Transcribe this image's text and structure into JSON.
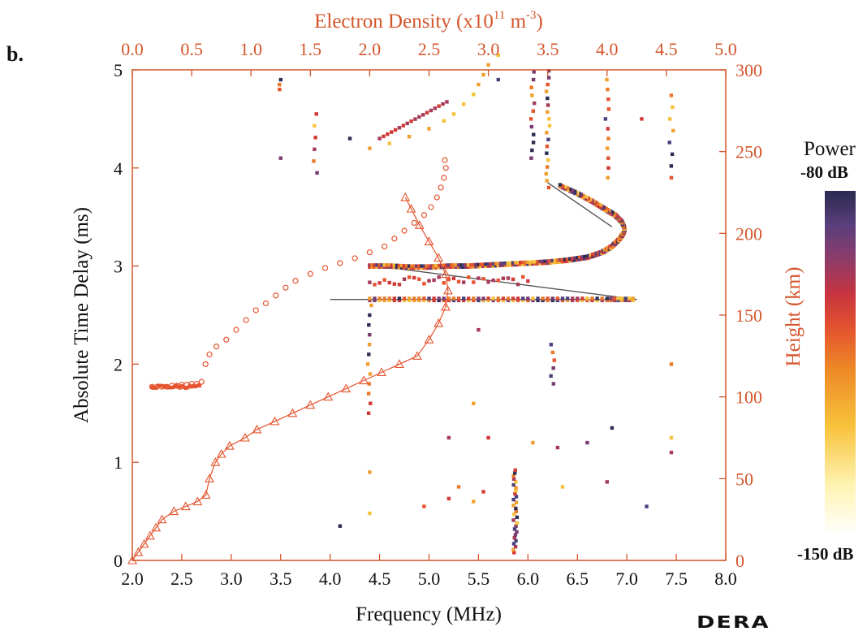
{
  "panel_label": "b.",
  "logo_text": "DERA",
  "chart_data": {
    "type": "scatter",
    "xlabel": "Frequency (MHz)",
    "ylabel": "Absolute Time Delay (ms)",
    "x2label_main": "Electron Density (x10",
    "x2label_sup1": "11",
    "x2label_unit": " m",
    "x2label_sup2": "-3",
    "x2label_close": ")",
    "y2label": "Height (km)",
    "xlim": [
      2.0,
      8.0
    ],
    "ylim": [
      0,
      5
    ],
    "x2lim": [
      0.0,
      5.0
    ],
    "y2lim": [
      0,
      300
    ],
    "x_ticks": [
      "2.0",
      "2.5",
      "3.0",
      "3.5",
      "4.0",
      "4.5",
      "5.0",
      "5.5",
      "6.0",
      "6.5",
      "7.0",
      "7.5",
      "8.0"
    ],
    "y_ticks": [
      "0",
      "1",
      "2",
      "3",
      "4",
      "5"
    ],
    "x2_ticks": [
      "0.0",
      "0.5",
      "1.0",
      "1.5",
      "2.0",
      "2.5",
      "3.0",
      "3.5",
      "4.0",
      "4.5",
      "5.0"
    ],
    "y2_ticks": [
      "0",
      "50",
      "100",
      "150",
      "200",
      "250",
      "300"
    ],
    "colorbar": {
      "title": "Power",
      "max_label": "-80 dB",
      "min_label": "-150 dB",
      "range_db": [
        -150,
        -80
      ]
    },
    "colors": {
      "axis": "#d4552b",
      "text": "#111111",
      "fit_line": "#555555"
    },
    "density_profile_triangles": [
      [
        0.0,
        0
      ],
      [
        0.05,
        5
      ],
      [
        0.1,
        10
      ],
      [
        0.15,
        15
      ],
      [
        0.2,
        20
      ],
      [
        0.25,
        25
      ],
      [
        0.35,
        30
      ],
      [
        0.45,
        33
      ],
      [
        0.55,
        36
      ],
      [
        0.62,
        40
      ],
      [
        0.65,
        50
      ],
      [
        0.7,
        60
      ],
      [
        0.75,
        65
      ],
      [
        0.82,
        70
      ],
      [
        0.95,
        75
      ],
      [
        1.05,
        80
      ],
      [
        1.2,
        85
      ],
      [
        1.35,
        90
      ],
      [
        1.5,
        95
      ],
      [
        1.65,
        100
      ],
      [
        1.8,
        105
      ],
      [
        1.95,
        110
      ],
      [
        2.1,
        115
      ],
      [
        2.25,
        120
      ],
      [
        2.4,
        125
      ],
      [
        2.5,
        135
      ],
      [
        2.58,
        145
      ],
      [
        2.64,
        155
      ],
      [
        2.66,
        165
      ],
      [
        2.64,
        175
      ],
      [
        2.58,
        185
      ],
      [
        2.5,
        195
      ],
      [
        2.42,
        205
      ],
      [
        2.35,
        215
      ],
      [
        2.3,
        222
      ]
    ],
    "virtual_height_circles": [
      [
        2.2,
        1.77
      ],
      [
        2.25,
        1.77
      ],
      [
        2.3,
        1.77
      ],
      [
        2.35,
        1.77
      ],
      [
        2.4,
        1.78
      ],
      [
        2.45,
        1.78
      ],
      [
        2.5,
        1.79
      ],
      [
        2.55,
        1.79
      ],
      [
        2.6,
        1.8
      ],
      [
        2.65,
        1.8
      ],
      [
        2.7,
        1.82
      ],
      [
        2.74,
        2.0
      ],
      [
        2.78,
        2.1
      ],
      [
        2.85,
        2.18
      ],
      [
        2.95,
        2.25
      ],
      [
        3.05,
        2.35
      ],
      [
        3.15,
        2.45
      ],
      [
        3.25,
        2.55
      ],
      [
        3.35,
        2.62
      ],
      [
        3.45,
        2.7
      ],
      [
        3.55,
        2.78
      ],
      [
        3.65,
        2.85
      ],
      [
        3.8,
        2.92
      ],
      [
        3.95,
        2.98
      ],
      [
        4.1,
        3.03
      ],
      [
        4.25,
        3.08
      ],
      [
        4.4,
        3.14
      ],
      [
        4.55,
        3.2
      ],
      [
        4.65,
        3.28
      ],
      [
        4.75,
        3.36
      ],
      [
        4.85,
        3.44
      ],
      [
        4.95,
        3.52
      ],
      [
        5.02,
        3.6
      ],
      [
        5.08,
        3.7
      ],
      [
        5.12,
        3.8
      ],
      [
        5.15,
        3.9
      ],
      [
        5.17,
        4.0
      ],
      [
        5.16,
        4.08
      ]
    ],
    "fit_lines": [
      [
        [
          4.0,
          2.66
        ],
        [
          7.1,
          2.66
        ]
      ],
      [
        [
          4.4,
          3.01
        ],
        [
          7.1,
          2.66
        ]
      ],
      [
        [
          6.2,
          3.85
        ],
        [
          6.85,
          3.4
        ]
      ]
    ],
    "ordinary_trace": [
      [
        4.4,
        3.0
      ],
      [
        4.6,
        3.0
      ],
      [
        4.8,
        2.99
      ],
      [
        5.0,
        2.99
      ],
      [
        5.2,
        3.0
      ],
      [
        5.4,
        3.0
      ],
      [
        5.6,
        3.01
      ],
      [
        5.8,
        3.02
      ],
      [
        6.0,
        3.03
      ],
      [
        6.2,
        3.04
      ],
      [
        6.4,
        3.06
      ],
      [
        6.6,
        3.09
      ],
      [
        6.75,
        3.14
      ],
      [
        6.85,
        3.2
      ],
      [
        6.93,
        3.28
      ],
      [
        6.97,
        3.34
      ],
      [
        6.98,
        3.38
      ],
      [
        6.95,
        3.45
      ],
      [
        6.88,
        3.52
      ],
      [
        6.78,
        3.58
      ],
      [
        6.65,
        3.66
      ],
      [
        6.5,
        3.74
      ],
      [
        6.3,
        3.83
      ]
    ],
    "extraordinary_trace": [
      [
        4.4,
        2.66
      ],
      [
        4.8,
        2.66
      ],
      [
        5.2,
        2.66
      ],
      [
        5.6,
        2.66
      ],
      [
        6.0,
        2.66
      ],
      [
        6.4,
        2.66
      ],
      [
        6.8,
        2.66
      ],
      [
        7.1,
        2.66
      ]
    ],
    "upper_spread_x": [
      [
        4.4,
        4.2
      ],
      [
        4.6,
        4.25
      ],
      [
        4.8,
        4.32
      ],
      [
        5.0,
        4.4
      ],
      [
        5.15,
        4.48
      ],
      [
        5.25,
        4.55
      ],
      [
        5.35,
        4.65
      ],
      [
        5.45,
        4.75
      ],
      [
        5.5,
        4.85
      ],
      [
        5.55,
        4.95
      ],
      [
        5.6,
        5.05
      ],
      [
        5.7,
        5.15
      ]
    ]
  }
}
